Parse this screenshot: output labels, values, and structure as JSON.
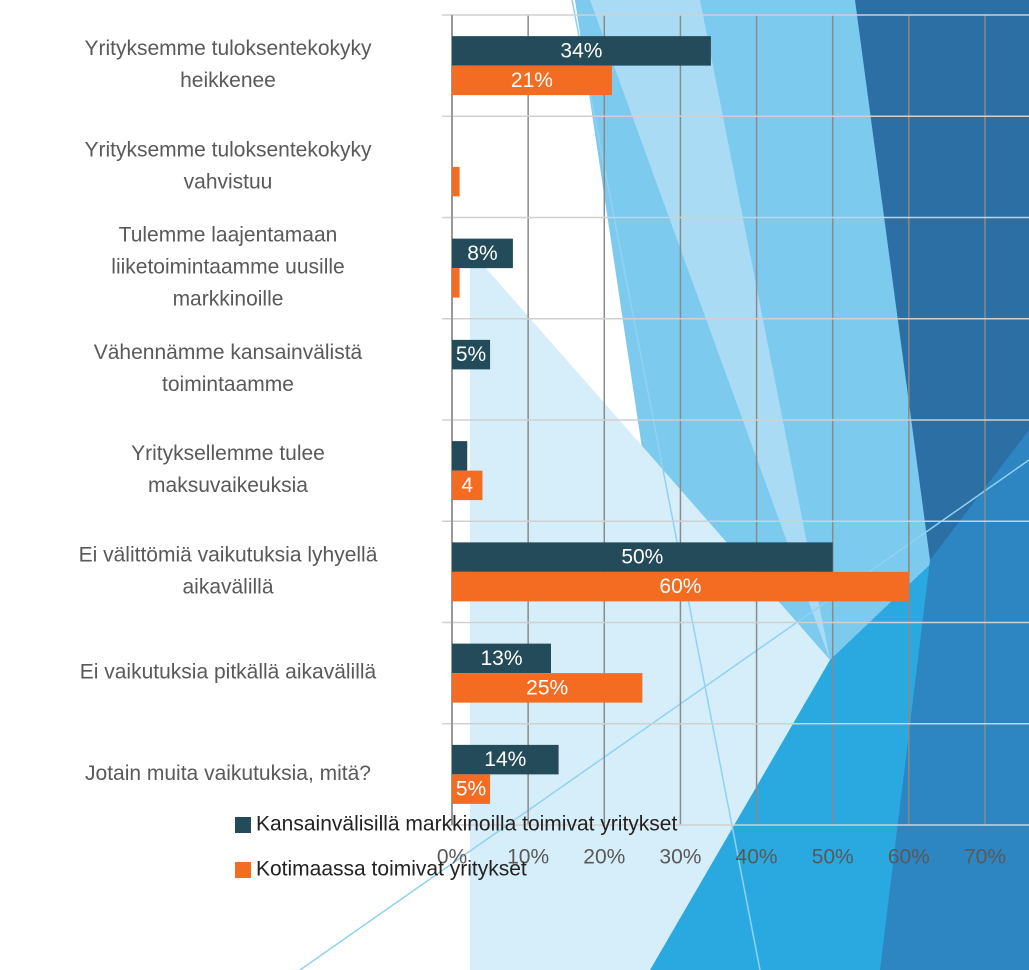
{
  "chart_data": {
    "type": "bar",
    "orientation": "horizontal",
    "categories": [
      [
        "Yrityksemme tuloksentekokyky",
        "heikkenee"
      ],
      [
        "Yrityksemme tuloksentekokyky",
        "vahvistuu"
      ],
      [
        "Tulemme laajentamaan",
        "liiketoimintaamme uusille",
        "markkinoille"
      ],
      [
        "Vähennämme kansainvälistä",
        "toimintaamme"
      ],
      [
        "Yrityksellemme tulee",
        "maksuvaikeuksia"
      ],
      [
        "Ei välittömiä vaikutuksia lyhyellä",
        "aikavälillä"
      ],
      [
        "Ei vaikutuksia pitkällä aikavälillä"
      ],
      [
        "Jotain muita vaikutuksia, mitä?"
      ]
    ],
    "series": [
      {
        "name": "Kansainvälisillä markkinoilla toimivat yritykset",
        "color": "#234b5a",
        "values": [
          34,
          null,
          8,
          5,
          2,
          50,
          13,
          14
        ],
        "value_labels": [
          "34%",
          null,
          "8%",
          "5%",
          null,
          "50%",
          "13%",
          "14%"
        ]
      },
      {
        "name": "Kotimaassa toimivat yritykset",
        "color": "#f36c21",
        "values": [
          21,
          1,
          1,
          null,
          4,
          60,
          25,
          5
        ],
        "value_labels": [
          "21%",
          null,
          null,
          null,
          "4",
          "60%",
          "25%",
          "5%"
        ]
      }
    ],
    "xlim": [
      0,
      70
    ],
    "xticks": [
      {
        "value": 0,
        "label": "0%"
      },
      {
        "value": 10,
        "label": "10%"
      },
      {
        "value": 20,
        "label": "20%"
      },
      {
        "value": 30,
        "label": "30%"
      },
      {
        "value": 40,
        "label": "40%"
      },
      {
        "value": 50,
        "label": "50%"
      },
      {
        "value": 60,
        "label": "60%"
      },
      {
        "value": 70,
        "label": "70%"
      }
    ],
    "grid": true,
    "legend": "bottom"
  }
}
